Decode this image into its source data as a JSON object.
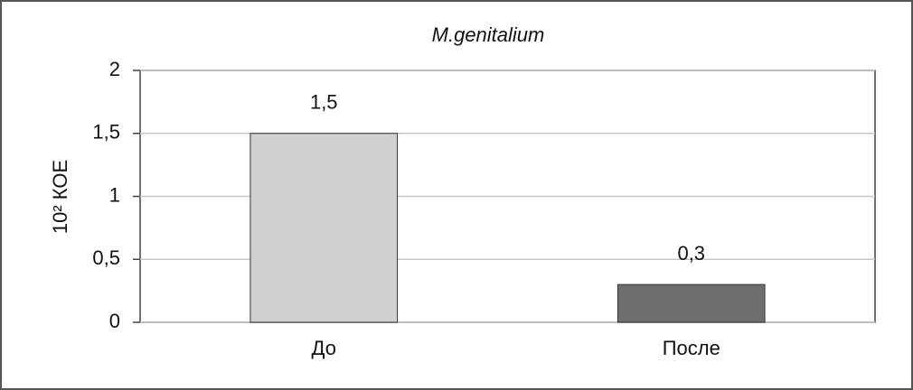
{
  "chart_data": {
    "type": "bar",
    "title": "M.genitalium",
    "y_label": "10² КОЕ",
    "categories": [
      "До",
      "После"
    ],
    "values": [
      1.5,
      0.3
    ],
    "value_labels": [
      "1,5",
      "0,3"
    ],
    "colors": [
      "#d0d0d0",
      "#6e6e6e"
    ],
    "ylim": [
      0,
      2
    ],
    "yticks": [
      0,
      {
        "value": 0.5,
        "label": "0,5"
      },
      1,
      {
        "value": 1.5,
        "label": "1,5"
      },
      2
    ],
    "grid": true
  }
}
